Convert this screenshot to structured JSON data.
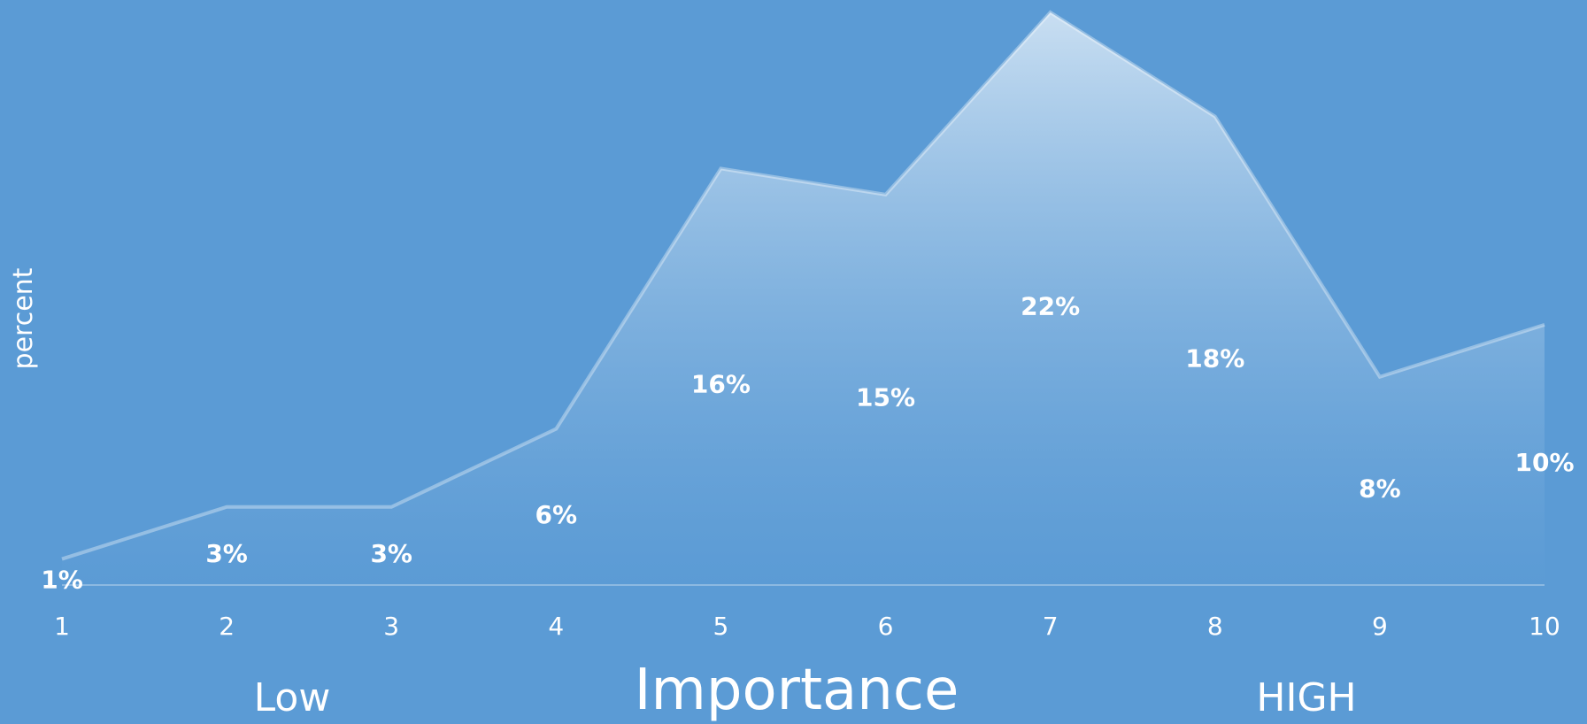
{
  "chart_data": {
    "type": "area",
    "x": [
      1,
      2,
      3,
      4,
      5,
      6,
      7,
      8,
      9,
      10
    ],
    "values": [
      1,
      3,
      3,
      6,
      16,
      15,
      22,
      18,
      8,
      10
    ],
    "data_labels": [
      "1%",
      "3%",
      "3%",
      "6%",
      "16%",
      "15%",
      "22%",
      "18%",
      "8%",
      "10%"
    ],
    "xlabel": "Importance",
    "ylabel": "percent",
    "x_annotations": {
      "low": "Low",
      "high": "HIGH"
    },
    "ylim": [
      0,
      22
    ],
    "grid": false,
    "colors": {
      "background": "#5b9bd5",
      "area_top": "#c5dcf0",
      "area_bottom": "#5b9bd5",
      "text": "#ffffff"
    }
  }
}
